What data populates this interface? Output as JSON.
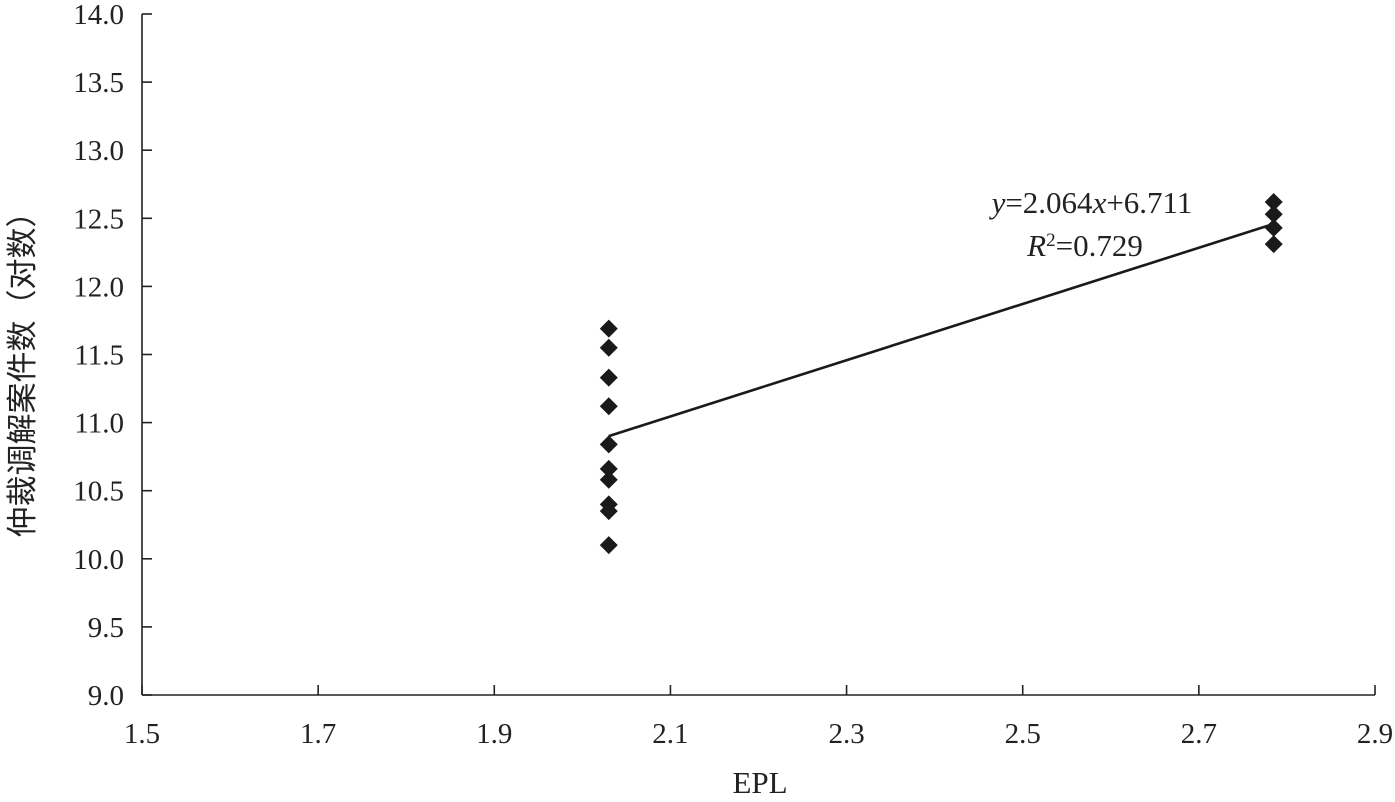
{
  "chart_data": {
    "type": "scatter",
    "xlabel": "EPL",
    "ylabel": "仲裁调解案件数（对数）",
    "xlim": [
      1.5,
      2.9
    ],
    "ylim": [
      9.0,
      14.0
    ],
    "x_ticks": [
      "1.5",
      "1.7",
      "1.9",
      "2.1",
      "2.3",
      "2.5",
      "2.7",
      "2.9"
    ],
    "y_ticks": [
      "9.0",
      "9.5",
      "10.0",
      "10.5",
      "11.0",
      "11.5",
      "12.0",
      "12.5",
      "13.0",
      "13.5",
      "14.0"
    ],
    "grid": false,
    "marker_color": "#1a1a1a",
    "points": [
      {
        "x": 2.03,
        "y": 11.69
      },
      {
        "x": 2.03,
        "y": 11.55
      },
      {
        "x": 2.03,
        "y": 11.33
      },
      {
        "x": 2.03,
        "y": 11.12
      },
      {
        "x": 2.03,
        "y": 10.84
      },
      {
        "x": 2.03,
        "y": 10.66
      },
      {
        "x": 2.03,
        "y": 10.58
      },
      {
        "x": 2.03,
        "y": 10.4
      },
      {
        "x": 2.03,
        "y": 10.35
      },
      {
        "x": 2.03,
        "y": 10.1
      },
      {
        "x": 2.785,
        "y": 12.62
      },
      {
        "x": 2.785,
        "y": 12.53
      },
      {
        "x": 2.785,
        "y": 12.43
      },
      {
        "x": 2.785,
        "y": 12.31
      }
    ],
    "trendline": {
      "x_start": 2.03,
      "x_end": 2.785,
      "slope": 2.064,
      "intercept": 6.711,
      "equation_parts": {
        "y_var": "y",
        "mid": "=2.064",
        "x_var": "x",
        "tail": "+6.711"
      },
      "r2_parts": {
        "r_var": "R",
        "sup": "2",
        "tail": "=0.729"
      }
    }
  }
}
